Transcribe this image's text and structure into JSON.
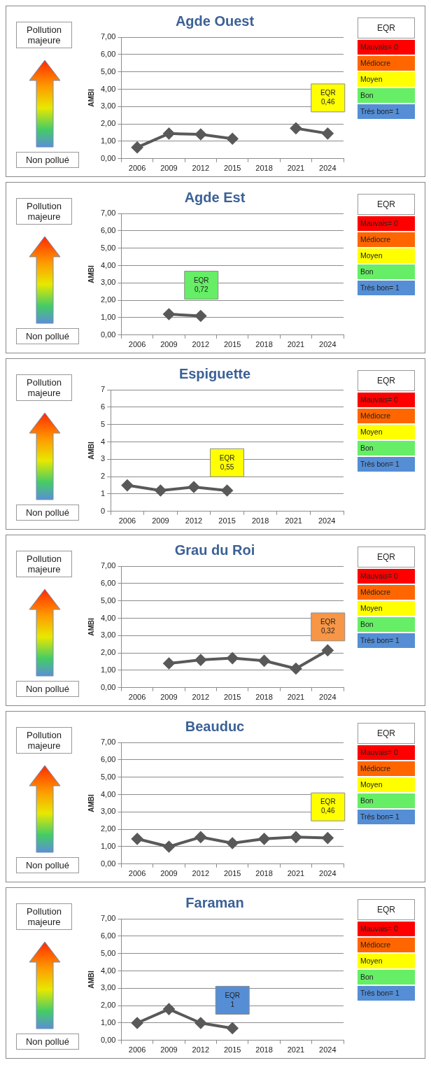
{
  "chart_data": [
    {
      "type": "line",
      "title": "Agde Ouest",
      "ylabel": "AMBI",
      "categories": [
        "2006",
        "2009",
        "2012",
        "2015",
        "2018",
        "2021",
        "2024"
      ],
      "series": [
        {
          "color": "#595959",
          "values": [
            0.65,
            1.45,
            1.4,
            1.15,
            null,
            1.75,
            1.45
          ]
        }
      ],
      "ylim": [
        0,
        7
      ],
      "yticks": [
        {
          "value": 0,
          "label": "0,00"
        },
        {
          "value": 1,
          "label": "1,00"
        },
        {
          "value": 2,
          "label": "2,00"
        },
        {
          "value": 3,
          "label": "3,00"
        },
        {
          "value": 4,
          "label": "4,00"
        },
        {
          "value": 5,
          "label": "5,00"
        },
        {
          "value": 6,
          "label": "6,00"
        },
        {
          "value": 7,
          "label": "7,00"
        }
      ],
      "grid": "y",
      "legend": false,
      "marker": "diamond",
      "legend_title": "EQR",
      "annotations": [
        "Pollution majeure",
        "Non pollué",
        "EQR\n0,46",
        "Mauvais= 0",
        "Médiocre",
        "Moyen",
        "Bon",
        "Très bon= 1"
      ]
    },
    {
      "type": "line",
      "title": "Agde Est",
      "ylabel": "AMBI",
      "categories": [
        "2006",
        "2009",
        "2012",
        "2015",
        "2018",
        "2021",
        "2024"
      ],
      "series": [
        {
          "color": "#595959",
          "values": [
            null,
            1.2,
            1.1,
            null,
            null,
            null,
            null
          ]
        }
      ],
      "ylim": [
        0,
        7
      ],
      "yticks": [
        {
          "value": 0,
          "label": "0,00"
        },
        {
          "value": 1,
          "label": "1,00"
        },
        {
          "value": 2,
          "label": "2,00"
        },
        {
          "value": 3,
          "label": "3,00"
        },
        {
          "value": 4,
          "label": "4,00"
        },
        {
          "value": 5,
          "label": "5,00"
        },
        {
          "value": 6,
          "label": "6,00"
        },
        {
          "value": 7,
          "label": "7,00"
        }
      ],
      "grid": "y",
      "legend": false,
      "marker": "diamond",
      "legend_title": "EQR",
      "annotations": [
        "Pollution majeure",
        "Non pollué",
        "EQR\n0,72",
        "Mauvais= 0",
        "Médiocre",
        "Moyen",
        "Bon",
        "Très bon= 1"
      ]
    },
    {
      "type": "line",
      "title": "Espiguette",
      "ylabel": "AMBI",
      "categories": [
        "2006",
        "2009",
        "2012",
        "2015",
        "2018",
        "2021",
        "2024"
      ],
      "series": [
        {
          "color": "#595959",
          "values": [
            1.5,
            1.2,
            1.4,
            1.2,
            null,
            null,
            null
          ]
        }
      ],
      "ylim": [
        0,
        7
      ],
      "yticks": [
        0,
        1,
        2,
        3,
        4,
        5,
        6,
        7
      ],
      "grid": "y",
      "legend": false,
      "marker": "diamond",
      "legend_title": "EQR",
      "annotations": [
        "Pollution majeure",
        "Non pollué",
        "EQR\n0,55",
        "Mauvais= 0",
        "Médiocre",
        "Moyen",
        "Bon",
        "Très bon= 1"
      ]
    },
    {
      "type": "line",
      "title": "Grau du Roi",
      "ylabel": "AMBI",
      "categories": [
        "2006",
        "2009",
        "2012",
        "2015",
        "2018",
        "2021",
        "2024"
      ],
      "series": [
        {
          "color": "#595959",
          "values": [
            null,
            1.4,
            1.6,
            1.7,
            1.55,
            1.1,
            2.15
          ]
        }
      ],
      "ylim": [
        0,
        7
      ],
      "yticks": [
        {
          "value": 0,
          "label": "0,00"
        },
        {
          "value": 1,
          "label": "1,00"
        },
        {
          "value": 2,
          "label": "2,00"
        },
        {
          "value": 3,
          "label": "3,00"
        },
        {
          "value": 4,
          "label": "4,00"
        },
        {
          "value": 5,
          "label": "5,00"
        },
        {
          "value": 6,
          "label": "6,00"
        },
        {
          "value": 7,
          "label": "7,00"
        }
      ],
      "grid": "y",
      "legend": false,
      "marker": "diamond",
      "legend_title": "EQR",
      "annotations": [
        "Pollution majeure",
        "Non pollué",
        "EQR\n0,32",
        "Mauvais= 0",
        "Médiocre",
        "Moyen",
        "Bon",
        "Très bon= 1"
      ]
    },
    {
      "type": "line",
      "title": "Beauduc",
      "ylabel": "AMBI",
      "categories": [
        "2006",
        "2009",
        "2012",
        "2015",
        "2018",
        "2021",
        "2024"
      ],
      "series": [
        {
          "color": "#595959",
          "values": [
            1.45,
            1.0,
            1.55,
            1.2,
            1.45,
            1.55,
            1.5
          ]
        }
      ],
      "ylim": [
        0,
        7
      ],
      "yticks": [
        {
          "value": 0,
          "label": "0,00"
        },
        {
          "value": 1,
          "label": "1,00"
        },
        {
          "value": 2,
          "label": "2,00"
        },
        {
          "value": 3,
          "label": "3,00"
        },
        {
          "value": 4,
          "label": "4,00"
        },
        {
          "value": 5,
          "label": "5,00"
        },
        {
          "value": 6,
          "label": "6,00"
        },
        {
          "value": 7,
          "label": "7,00"
        }
      ],
      "grid": "y",
      "legend": false,
      "marker": "diamond",
      "legend_title": "EQR",
      "annotations": [
        "Pollution majeure",
        "Non pollué",
        "EQR\n0,46",
        "Mauvais= 0",
        "Médiocre",
        "Moyen",
        "Bon",
        "Très bon= 1"
      ]
    },
    {
      "type": "line",
      "title": "Faraman",
      "ylabel": "AMBI",
      "categories": [
        "2006",
        "2009",
        "2012",
        "2015",
        "2018",
        "2021",
        "2024"
      ],
      "series": [
        {
          "color": "#595959",
          "values": [
            1.0,
            1.8,
            1.0,
            0.7,
            null,
            null,
            null
          ]
        }
      ],
      "ylim": [
        0,
        7
      ],
      "yticks": [
        {
          "value": 0,
          "label": "0,00"
        },
        {
          "value": 1,
          "label": "1,00"
        },
        {
          "value": 2,
          "label": "2,00"
        },
        {
          "value": 3,
          "label": "3,00"
        },
        {
          "value": 4,
          "label": "4,00"
        },
        {
          "value": 5,
          "label": "5,00"
        },
        {
          "value": 6,
          "label": "6,00"
        },
        {
          "value": 7,
          "label": "7,00"
        }
      ],
      "grid": "y",
      "legend": false,
      "marker": "diamond",
      "legend_title": "EQR",
      "annotations": [
        "Pollution majeure",
        "Non pollué",
        "EQR\n1",
        "Mauvais= 0",
        "Médiocre",
        "Moyen",
        "Bon",
        "Très bon= 1"
      ]
    }
  ]
}
